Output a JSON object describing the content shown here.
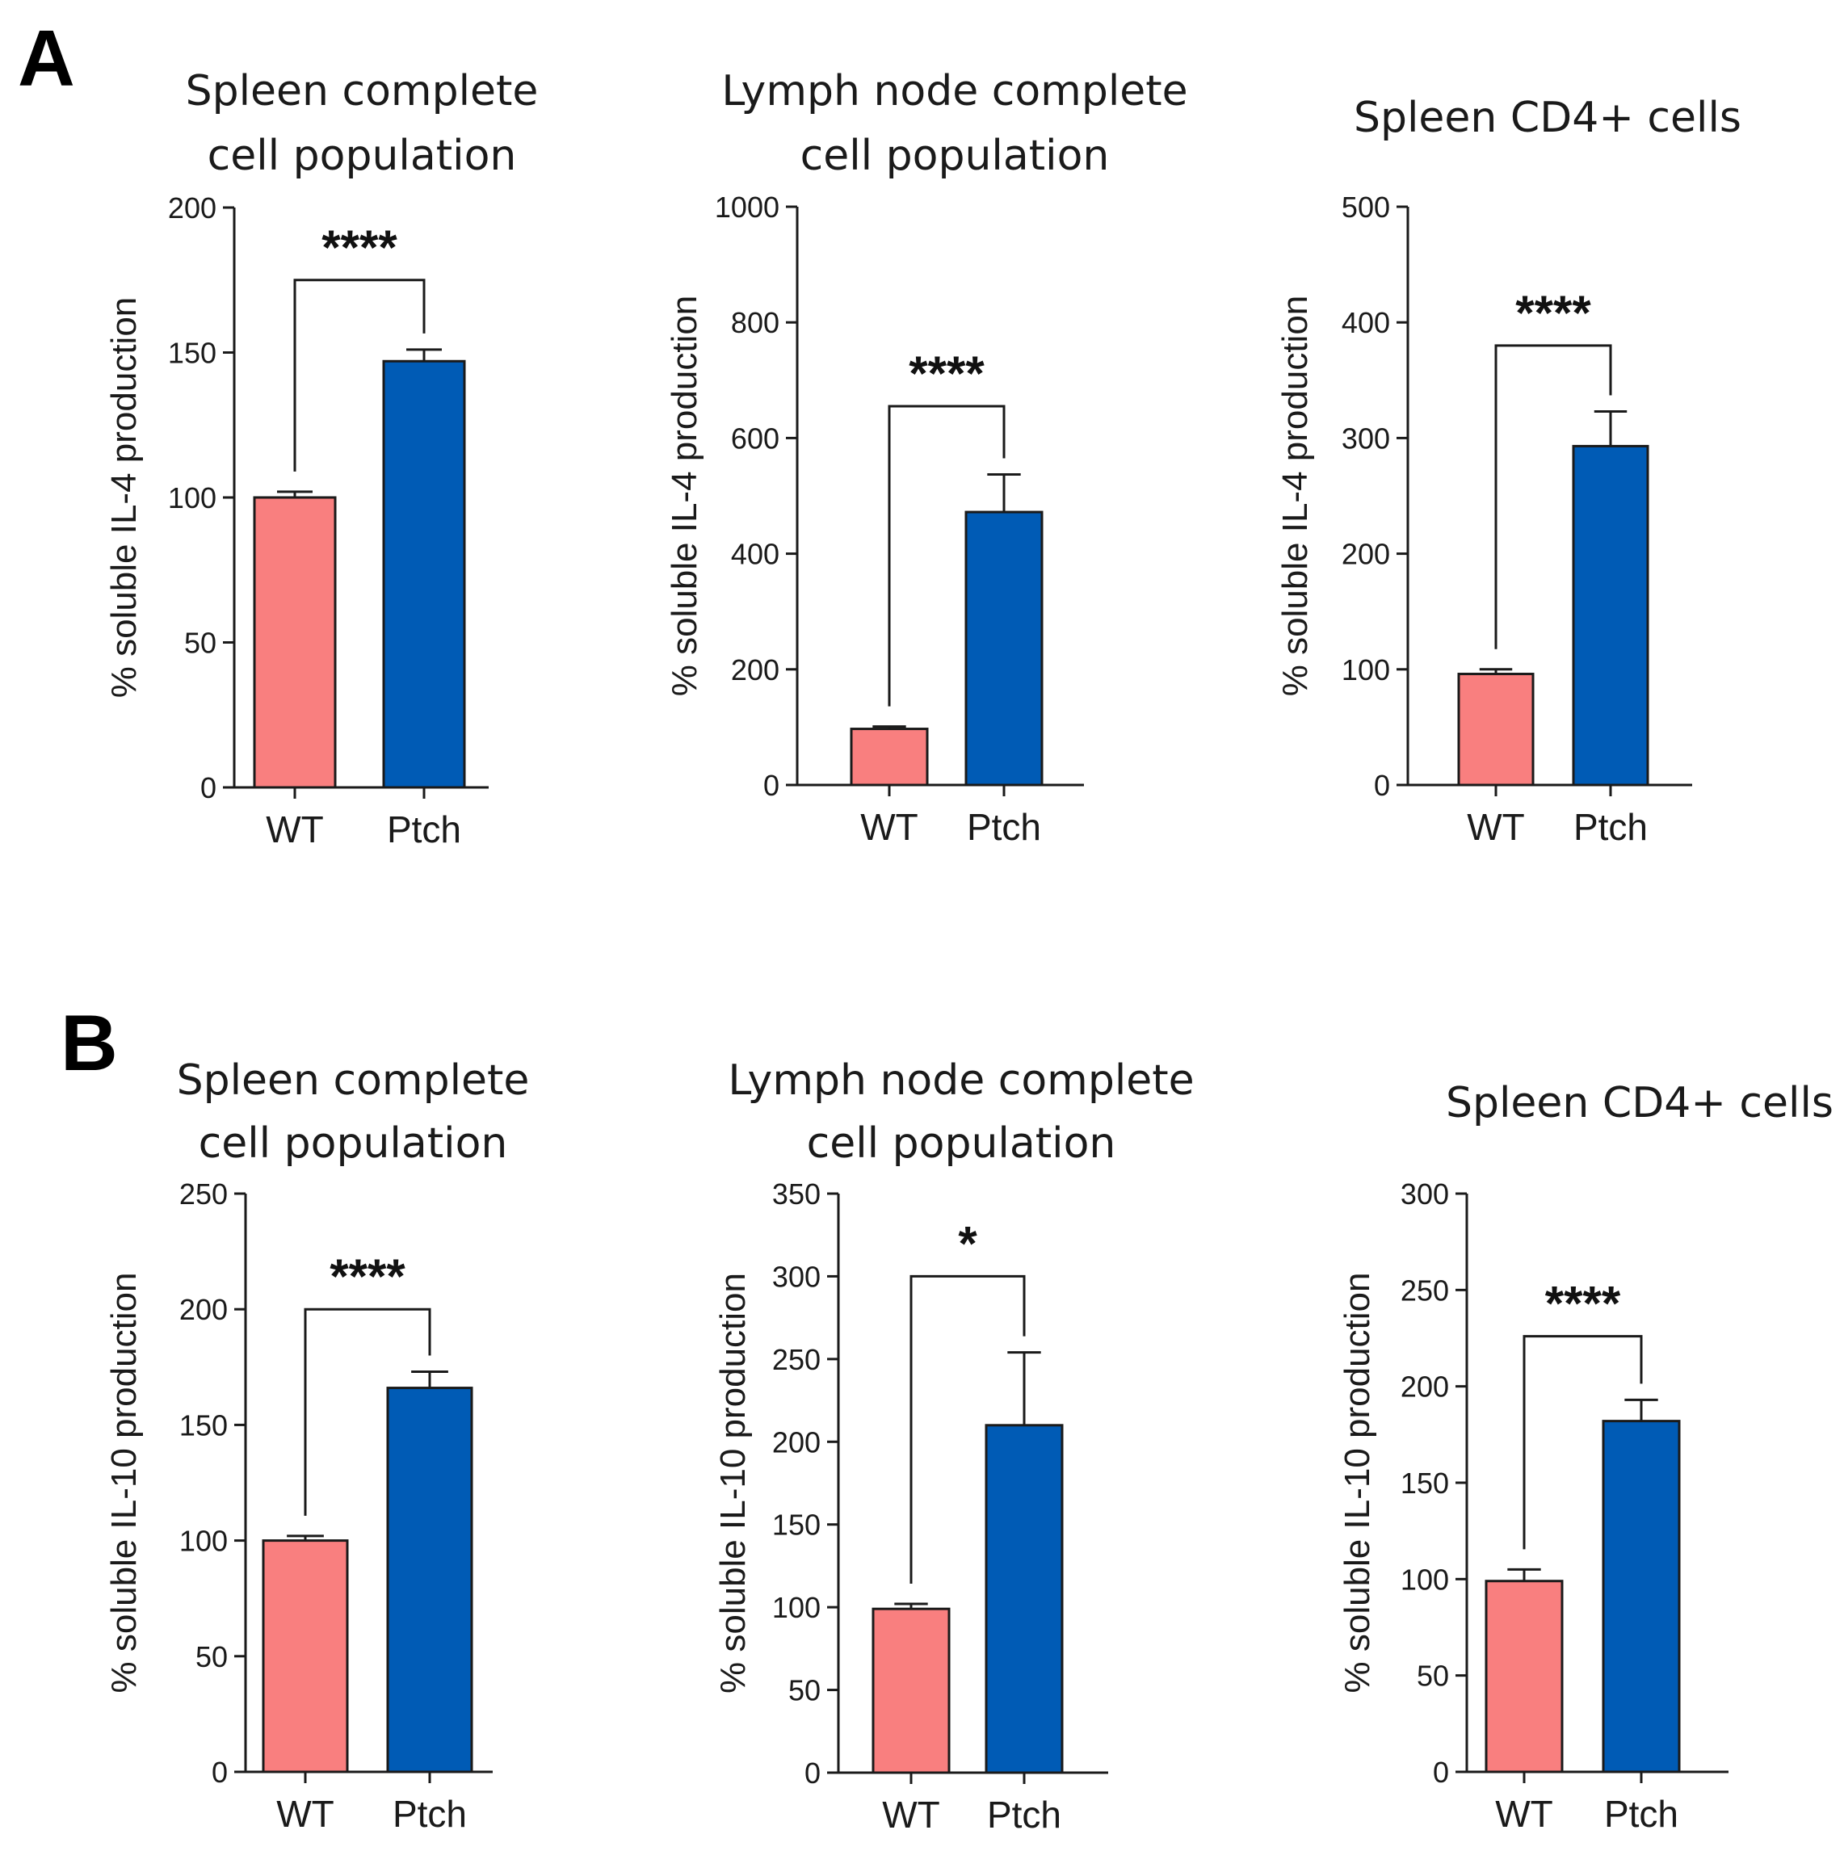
{
  "colors": {
    "WT": "#f97f7f",
    "Ptch": "#005bb5"
  },
  "panels": [
    {
      "letter": "A"
    },
    {
      "letter": "B"
    }
  ],
  "chart_data": [
    {
      "type": "bar",
      "panel": "A",
      "title": [
        "Spleen complete",
        "cell population"
      ],
      "ylabel": "% soluble IL-4 production",
      "categories": [
        "WT",
        "Ptch"
      ],
      "values": [
        100,
        147
      ],
      "errors": [
        2,
        4
      ],
      "ylim": [
        0,
        200
      ],
      "yticks": [
        0,
        50,
        100,
        150,
        200
      ],
      "significance": "****",
      "bracket_top": 175
    },
    {
      "type": "bar",
      "panel": "A",
      "title": [
        "Lymph node complete",
        "cell population"
      ],
      "ylabel": "% soluble IL-4 production",
      "categories": [
        "WT",
        "Ptch"
      ],
      "values": [
        97,
        472
      ],
      "errors": [
        4,
        65
      ],
      "ylim": [
        0,
        1000
      ],
      "yticks": [
        0,
        200,
        400,
        600,
        800,
        1000
      ],
      "significance": "****",
      "bracket_top": 655
    },
    {
      "type": "bar",
      "panel": "A",
      "title": [
        "Spleen CD4+ cells"
      ],
      "ylabel": "% soluble IL-4 production",
      "categories": [
        "WT",
        "Ptch"
      ],
      "values": [
        96,
        293
      ],
      "errors": [
        4,
        30
      ],
      "ylim": [
        0,
        500
      ],
      "yticks": [
        0,
        100,
        200,
        300,
        400,
        500
      ],
      "significance": "****",
      "bracket_top": 380
    },
    {
      "type": "bar",
      "panel": "B",
      "title": [
        "Spleen complete",
        "cell population"
      ],
      "ylabel": "% soluble IL-10 production",
      "categories": [
        "WT",
        "Ptch"
      ],
      "values": [
        100,
        166
      ],
      "errors": [
        2,
        7
      ],
      "ylim": [
        0,
        250
      ],
      "yticks": [
        0,
        50,
        100,
        150,
        200,
        250
      ],
      "significance": "****",
      "bracket_top": 200
    },
    {
      "type": "bar",
      "panel": "B",
      "title": [
        "Lymph node complete",
        "cell population"
      ],
      "ylabel": "% soluble IL-10 production",
      "categories": [
        "WT",
        "Ptch"
      ],
      "values": [
        99,
        210
      ],
      "errors": [
        3,
        44
      ],
      "ylim": [
        0,
        350
      ],
      "yticks": [
        0,
        50,
        100,
        150,
        200,
        250,
        300,
        350
      ],
      "significance": "*",
      "bracket_top": 300
    },
    {
      "type": "bar",
      "panel": "B",
      "title": [
        "Spleen CD4+ cells"
      ],
      "ylabel": "% soluble IL-10 production",
      "categories": [
        "WT",
        "Ptch"
      ],
      "values": [
        99,
        182
      ],
      "errors": [
        6,
        11
      ],
      "ylim": [
        0,
        300
      ],
      "yticks": [
        0,
        50,
        100,
        150,
        200,
        250,
        300
      ],
      "significance": "****",
      "bracket_top": 226
    }
  ]
}
